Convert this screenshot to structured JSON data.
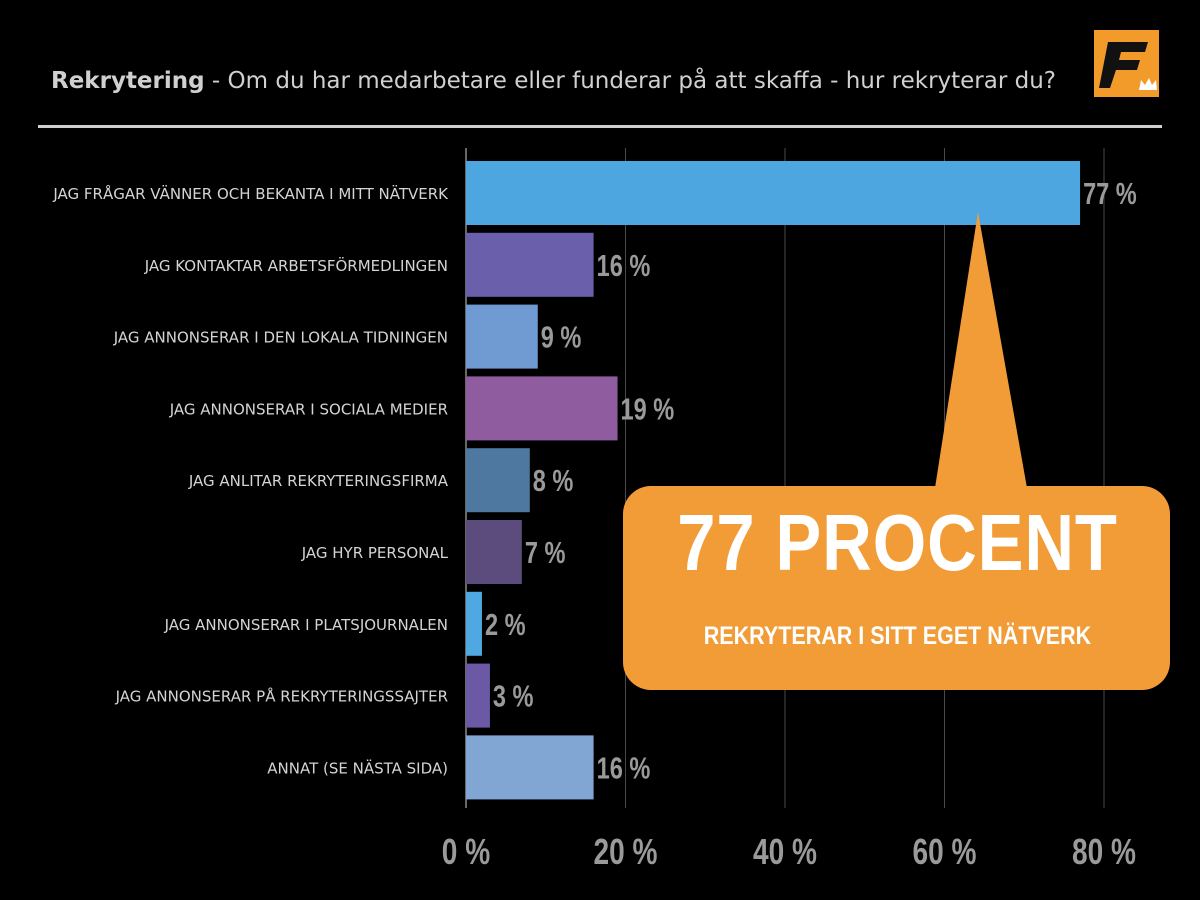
{
  "header": {
    "title_bold": "Rekrytering",
    "title_rest": " - Om du har medarbetare eller funderar på att skaffa - hur rekryterar du?"
  },
  "logo": {
    "icon": "f-crown-logo-icon",
    "letter": "F",
    "bg_color": "#f39b2a"
  },
  "callout": {
    "headline": "77 PROCENT",
    "subline": "REKRYTERAR I SITT EGET NÄTVERK",
    "color": "#f29c38"
  },
  "chart_data": {
    "type": "bar",
    "orientation": "horizontal",
    "categories": [
      "JAG FRÅGAR VÄNNER OCH BEKANTA I MITT NÄTVERK",
      "JAG KONTAKTAR ARBETSFÖRMEDLINGEN",
      "JAG ANNONSERAR I DEN LOKALA TIDNINGEN",
      "JAG ANNONSERAR I SOCIALA MEDIER",
      "JAG ANLITAR REKRYTERINGSFIRMA",
      "JAG HYR PERSONAL",
      "JAG ANNONSERAR I PLATSJOURNALEN",
      "JAG ANNONSERAR PÅ REKRYTERINGSSAJTER",
      "ANNAT (SE NÄSTA SIDA)"
    ],
    "values": [
      77,
      16,
      9,
      19,
      8,
      7,
      2,
      3,
      16
    ],
    "value_labels": [
      "77 %",
      "16 %",
      "9 %",
      "19 %",
      "8 %",
      "7 %",
      "2 %",
      "3 %",
      "16 %"
    ],
    "bar_colors": [
      "#4ea6e0",
      "#6a5fab",
      "#6f9bd2",
      "#8e5c9f",
      "#4f78a1",
      "#5b4c7d",
      "#4fa8e2",
      "#6c59a6",
      "#82a6d4"
    ],
    "xlim": [
      0,
      80
    ],
    "x_ticks": [
      0,
      20,
      40,
      60,
      80
    ],
    "x_tick_labels": [
      "0 %",
      "20 %",
      "40 %",
      "60 %",
      "80 %"
    ],
    "grid": true
  }
}
